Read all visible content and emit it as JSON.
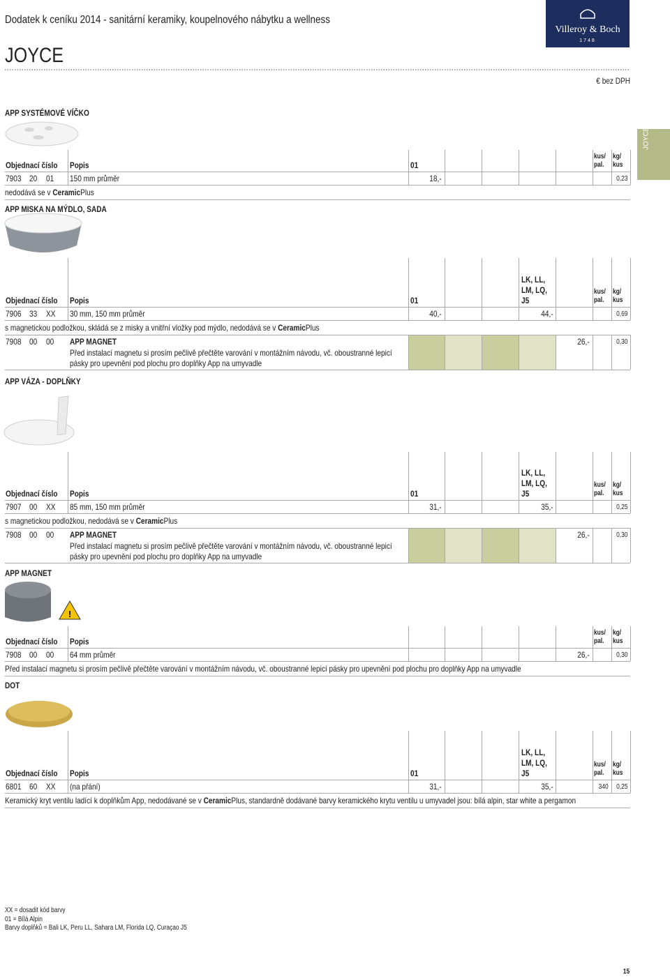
{
  "header": {
    "title": "Dodatek k ceníku 2014 - sanitární keramiky, koupelnového nábytku a wellness",
    "series": "JOYCE",
    "logo": "Villeroy & Boch",
    "logo_year": "1748",
    "currency": "€ bez DPH",
    "side_tab": "JOYCE"
  },
  "sections": [
    {
      "name": "APP SYSTÉMOVÉ VÍČKO",
      "columns": {
        "code": "Objednací číslo",
        "desc": "Popis",
        "c01": "01",
        "pal": [
          "kus/",
          "pal."
        ],
        "kg": [
          "kg/",
          "kus"
        ]
      },
      "items": [
        {
          "code": [
            "7903",
            "20",
            "01"
          ],
          "desc": "150 mm průměr",
          "p01": "18,-",
          "kg": "0,23"
        },
        {
          "note": [
            "nedodává se v ",
            "Ceramic",
            "Plus"
          ]
        }
      ]
    },
    {
      "name": "APP MISKA NA MÝDLO, SADA",
      "columns": {
        "code": "Objednací číslo",
        "desc": "Popis",
        "c01": "01",
        "lk": [
          "LK, LL,",
          "LM, LQ,",
          "J5"
        ],
        "pal": [
          "kus/",
          "pal."
        ],
        "kg": [
          "kg/",
          "kus"
        ]
      },
      "items": [
        {
          "code": [
            "7906",
            "33",
            "XX"
          ],
          "desc": "30 mm, 150 mm průměr",
          "p01": "40,-",
          "plk": "44,-",
          "kg": "0,69"
        },
        {
          "note": [
            "s magnetickou podložkou, skládá se z misky a vnitřní vložky pod mýdlo, nedodává se v ",
            "Ceramic",
            "Plus"
          ]
        },
        {
          "code": [
            "7908",
            "00",
            "00"
          ],
          "desc": "APP MAGNET",
          "detail": [
            "Před instalací magnetu si prosím pečlivě přečtěte varování v montážním návodu, vč. oboustranné lepicí",
            "pásky pro upevnění pod plochu pro doplňky App na umyvadle"
          ],
          "price": "26,-",
          "kg": "0,30"
        }
      ]
    },
    {
      "name": "APP VÁZA - DOPLŇKY",
      "columns": {
        "code": "Objednací číslo",
        "desc": "Popis",
        "c01": "01",
        "lk": [
          "LK, LL,",
          "LM, LQ,",
          "J5"
        ],
        "pal": [
          "kus/",
          "pal."
        ],
        "kg": [
          "kg/",
          "kus"
        ]
      },
      "items": [
        {
          "code": [
            "7907",
            "00",
            "XX"
          ],
          "desc": "85 mm, 150 mm průměr",
          "p01": "31,-",
          "plk": "35,-",
          "kg": "0,25"
        },
        {
          "note": [
            "s magnetickou podložkou, nedodává se v ",
            "Ceramic",
            "Plus"
          ]
        },
        {
          "code": [
            "7908",
            "00",
            "00"
          ],
          "desc": "APP MAGNET",
          "detail": [
            "Před instalací magnetu si prosím pečlivě přečtěte varování v montážním návodu, vč. oboustranné lepicí",
            "pásky pro upevnění pod plochu pro doplňky App na umyvadle"
          ],
          "price": "26,-",
          "kg": "0,30"
        }
      ]
    },
    {
      "name": "APP MAGNET",
      "columns": {
        "code": "Objednací číslo",
        "desc": "Popis",
        "pal": [
          "kus/",
          "pal."
        ],
        "kg": [
          "kg/",
          "kus"
        ]
      },
      "items": [
        {
          "code": [
            "7908",
            "00",
            "00"
          ],
          "desc": "64 mm průměr",
          "price": "26,-",
          "kg": "0,30"
        },
        {
          "note": [
            "Před instalací magnetu si prosím pečlivě přečtěte varování v montážním návodu, vč. oboustranné lepicí pásky pro upevnění pod plochu pro doplňky App na umyvadle"
          ]
        }
      ]
    },
    {
      "name": "DOT",
      "columns": {
        "code": "Objednací číslo",
        "desc": "Popis",
        "c01": "01",
        "lk": [
          "LK, LL,",
          "LM, LQ,",
          "J5"
        ],
        "pal": [
          "kus/",
          "pal."
        ],
        "kg": [
          "kg/",
          "kus"
        ]
      },
      "items": [
        {
          "code": [
            "6801",
            "60",
            "XX"
          ],
          "desc": "(na přání)",
          "p01": "31,-",
          "plk": "35,-",
          "pal": "340",
          "kg": "0,25"
        },
        {
          "note": [
            "Keramický kryt ventilu ladící k doplňkům App, nedodávané se v ",
            "Ceramic",
            "Plus, standardně dodávané barvy keramického krytu ventilu u umyvadel jsou: bílá alpin, star white a pergamon"
          ]
        }
      ]
    }
  ],
  "footer": {
    "notes": [
      "XX = dosadit kód barvy",
      "01 = Bílá Alpin",
      "Barvy doplňků = Bali LK, Peru LL, Sahara LM, Florida LQ, Curaçao J5"
    ],
    "page": "15"
  }
}
